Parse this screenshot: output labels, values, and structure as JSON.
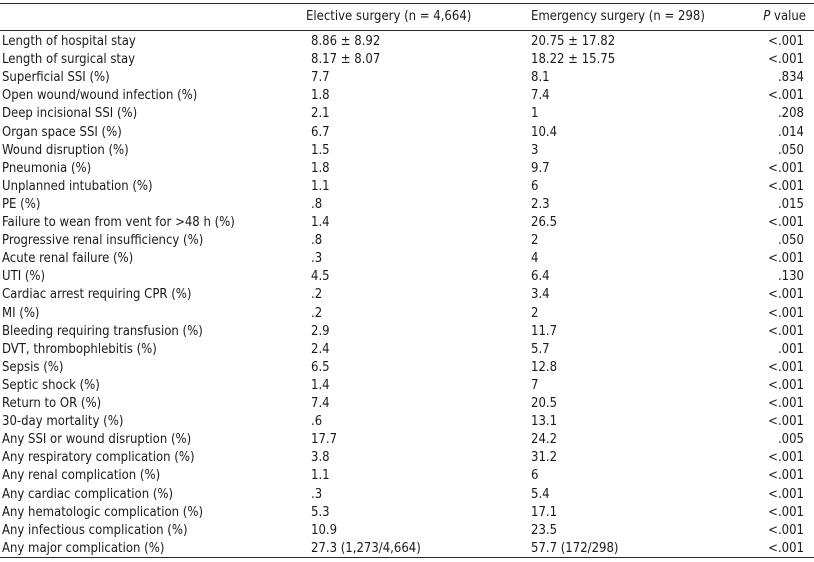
{
  "header": {
    "col1": "",
    "col2": "Elective surgery (n = 4,664)",
    "col3": "Emergency surgery (n = 298)",
    "col4_italic": "P",
    "col4_rest": " value"
  },
  "rows": [
    {
      "label": "Length of hospital stay",
      "elective": "8.86 ± 8.92",
      "emergency": "20.75 ± 17.82",
      "p": "<.001"
    },
    {
      "label": "Length of surgical stay",
      "elective": "8.17 ± 8.07",
      "emergency": "18.22 ± 15.75",
      "p": "<.001"
    },
    {
      "label": "Superficial SSI (%)",
      "elective": "7.7",
      "emergency": "8.1",
      "p": ".834"
    },
    {
      "label": "Open wound/wound infection (%)",
      "elective": "1.8",
      "emergency": "7.4",
      "p": "<.001"
    },
    {
      "label": "Deep incisional SSI (%)",
      "elective": "2.1",
      "emergency": "1",
      "p": ".208"
    },
    {
      "label": "Organ space SSI (%)",
      "elective": "6.7",
      "emergency": "10.4",
      "p": ".014"
    },
    {
      "label": "Wound disruption (%)",
      "elective": "1.5",
      "emergency": "3",
      "p": ".050"
    },
    {
      "label": "Pneumonia (%)",
      "elective": "1.8",
      "emergency": "9.7",
      "p": "<.001"
    },
    {
      "label": "Unplanned intubation (%)",
      "elective": "1.1",
      "emergency": "6",
      "p": "<.001"
    },
    {
      "label": "PE (%)",
      "elective": ".8",
      "emergency": "2.3",
      "p": ".015"
    },
    {
      "label": "Failure to wean from vent for >48 h (%)",
      "elective": "1.4",
      "emergency": "26.5",
      "p": "<.001"
    },
    {
      "label": "Progressive renal insufficiency (%)",
      "elective": ".8",
      "emergency": "2",
      "p": ".050"
    },
    {
      "label": "Acute renal failure (%)",
      "elective": ".3",
      "emergency": "4",
      "p": "<.001"
    },
    {
      "label": "UTI (%)",
      "elective": "4.5",
      "emergency": "6.4",
      "p": ".130"
    },
    {
      "label": "Cardiac arrest requiring CPR (%)",
      "elective": ".2",
      "emergency": "3.4",
      "p": "<.001"
    },
    {
      "label": "MI (%)",
      "elective": ".2",
      "emergency": "2",
      "p": "<.001"
    },
    {
      "label": "Bleeding requiring transfusion (%)",
      "elective": "2.9",
      "emergency": "11.7",
      "p": "<.001"
    },
    {
      "label": "DVT, thrombophlebitis (%)",
      "elective": "2.4",
      "emergency": "5.7",
      "p": ".001"
    },
    {
      "label": "Sepsis (%)",
      "elective": "6.5",
      "emergency": "12.8",
      "p": "<.001"
    },
    {
      "label": "Septic shock (%)",
      "elective": "1.4",
      "emergency": "7",
      "p": "<.001"
    },
    {
      "label": "Return to OR (%)",
      "elective": "7.4",
      "emergency": "20.5",
      "p": "<.001"
    },
    {
      "label": "30-day mortality (%)",
      "elective": ".6",
      "emergency": "13.1",
      "p": "<.001"
    },
    {
      "label": "Any SSI or wound disruption (%)",
      "elective": "17.7",
      "emergency": "24.2",
      "p": ".005"
    },
    {
      "label": "Any respiratory complication (%)",
      "elective": "3.8",
      "emergency": "31.2",
      "p": "<.001"
    },
    {
      "label": "Any renal complication (%)",
      "elective": "1.1",
      "emergency": "6",
      "p": "<.001"
    },
    {
      "label": "Any cardiac complication (%)",
      "elective": ".3",
      "emergency": "5.4",
      "p": "<.001"
    },
    {
      "label": "Any hematologic complication (%)",
      "elective": "5.3",
      "emergency": "17.1",
      "p": "<.001"
    },
    {
      "label": "Any infectious complication (%)",
      "elective": "10.9",
      "emergency": "23.5",
      "p": "<.001"
    },
    {
      "label": "Any major complication (%)",
      "elective": "27.3 (1,273/4,664)",
      "emergency": "57.7 (172/298)",
      "p": "<.001"
    }
  ]
}
